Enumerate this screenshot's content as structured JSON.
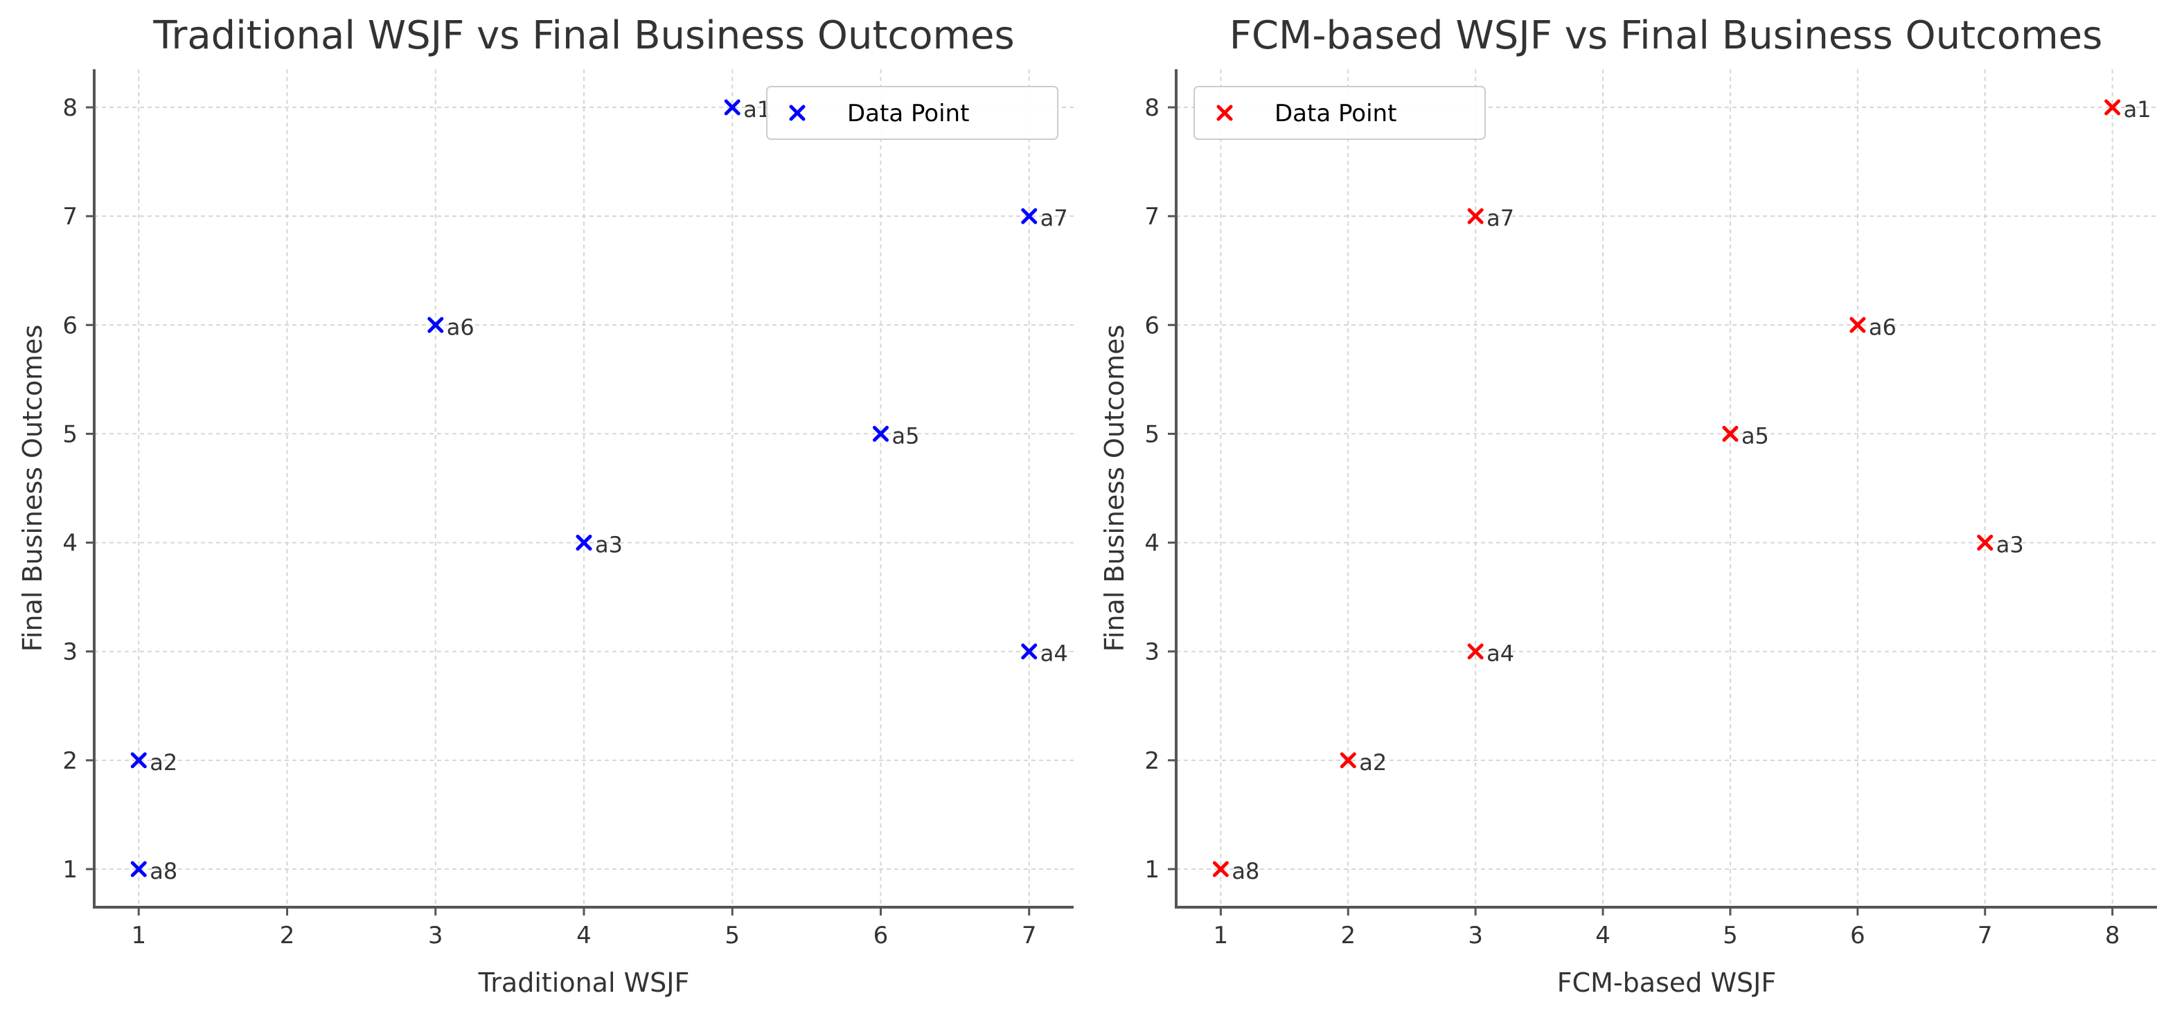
{
  "chart_data": [
    {
      "type": "scatter",
      "title": "Traditional WSJF vs Final Business Outcomes",
      "xlabel": "Traditional WSJF",
      "ylabel": "Final Business Outcomes",
      "xlim": [
        0.7,
        7.3
      ],
      "ylim": [
        0.65,
        8.35
      ],
      "xticks": [
        1,
        2,
        3,
        4,
        5,
        6,
        7
      ],
      "yticks": [
        1,
        2,
        3,
        4,
        5,
        6,
        7,
        8
      ],
      "grid": true,
      "marker": "x",
      "color": "#0000ff",
      "legend": {
        "label": "Data Point",
        "position": "top-right"
      },
      "points": [
        {
          "label": "a1",
          "x": 5,
          "y": 8
        },
        {
          "label": "a2",
          "x": 1,
          "y": 2
        },
        {
          "label": "a3",
          "x": 4,
          "y": 4
        },
        {
          "label": "a4",
          "x": 7,
          "y": 3
        },
        {
          "label": "a5",
          "x": 6,
          "y": 5
        },
        {
          "label": "a6",
          "x": 3,
          "y": 6
        },
        {
          "label": "a7",
          "x": 7,
          "y": 7
        },
        {
          "label": "a8",
          "x": 1,
          "y": 1
        }
      ]
    },
    {
      "type": "scatter",
      "title": "FCM-based WSJF vs Final Business Outcomes",
      "xlabel": "FCM-based WSJF",
      "ylabel": "Final Business Outcomes",
      "xlim": [
        0.65,
        8.35
      ],
      "ylim": [
        0.65,
        8.35
      ],
      "xticks": [
        1,
        2,
        3,
        4,
        5,
        6,
        7,
        8
      ],
      "yticks": [
        1,
        2,
        3,
        4,
        5,
        6,
        7,
        8
      ],
      "grid": true,
      "marker": "x",
      "color": "#ff0000",
      "legend": {
        "label": "Data Point",
        "position": "top-left"
      },
      "points": [
        {
          "label": "a1",
          "x": 8,
          "y": 8
        },
        {
          "label": "a2",
          "x": 2,
          "y": 2
        },
        {
          "label": "a3",
          "x": 7,
          "y": 4
        },
        {
          "label": "a4",
          "x": 3,
          "y": 3
        },
        {
          "label": "a5",
          "x": 5,
          "y": 5
        },
        {
          "label": "a6",
          "x": 6,
          "y": 6
        },
        {
          "label": "a7",
          "x": 3,
          "y": 7
        },
        {
          "label": "a8",
          "x": 1,
          "y": 1
        }
      ]
    }
  ]
}
